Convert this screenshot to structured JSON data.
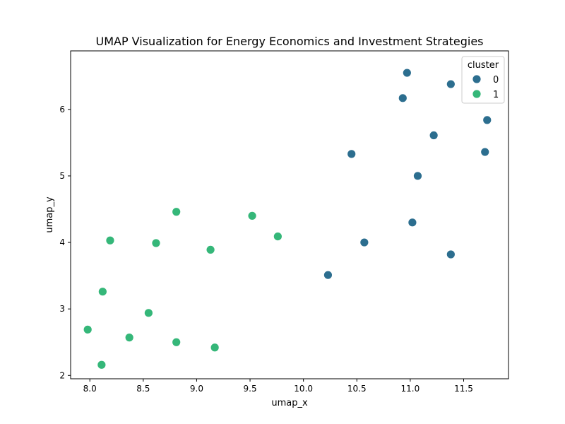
{
  "chart_data": {
    "type": "scatter",
    "title": "UMAP Visualization for Energy Economics and Investment Strategies",
    "xlabel": "umap_x",
    "ylabel": "umap_y",
    "xlim": [
      7.82,
      11.92
    ],
    "ylim": [
      1.95,
      6.88
    ],
    "xticks": [
      8.0,
      8.5,
      9.0,
      9.5,
      10.0,
      10.5,
      11.0,
      11.5
    ],
    "xtick_labels": [
      "8.0",
      "8.5",
      "9.0",
      "9.5",
      "10.0",
      "10.5",
      "11.0",
      "11.5"
    ],
    "yticks": [
      2,
      3,
      4,
      5,
      6
    ],
    "ytick_labels": [
      "2",
      "3",
      "4",
      "5",
      "6"
    ],
    "grid": false,
    "legend": {
      "title": "cluster",
      "position": "top-right"
    },
    "series": [
      {
        "name": "0",
        "color": "#2c6e8f",
        "points": [
          [
            10.97,
            6.55
          ],
          [
            11.38,
            6.38
          ],
          [
            10.93,
            6.17
          ],
          [
            11.72,
            5.84
          ],
          [
            11.22,
            5.61
          ],
          [
            11.7,
            5.36
          ],
          [
            10.45,
            5.33
          ],
          [
            11.07,
            5.0
          ],
          [
            11.02,
            4.3
          ],
          [
            10.57,
            4.0
          ],
          [
            11.38,
            3.82
          ],
          [
            10.23,
            3.51
          ]
        ]
      },
      {
        "name": "1",
        "color": "#35b779",
        "points": [
          [
            8.81,
            4.46
          ],
          [
            9.52,
            4.4
          ],
          [
            9.76,
            4.09
          ],
          [
            8.19,
            4.03
          ],
          [
            8.62,
            3.99
          ],
          [
            9.13,
            3.89
          ],
          [
            8.12,
            3.26
          ],
          [
            8.55,
            2.94
          ],
          [
            7.98,
            2.69
          ],
          [
            8.37,
            2.57
          ],
          [
            8.81,
            2.5
          ],
          [
            9.17,
            2.42
          ],
          [
            8.11,
            2.16
          ]
        ]
      }
    ]
  }
}
